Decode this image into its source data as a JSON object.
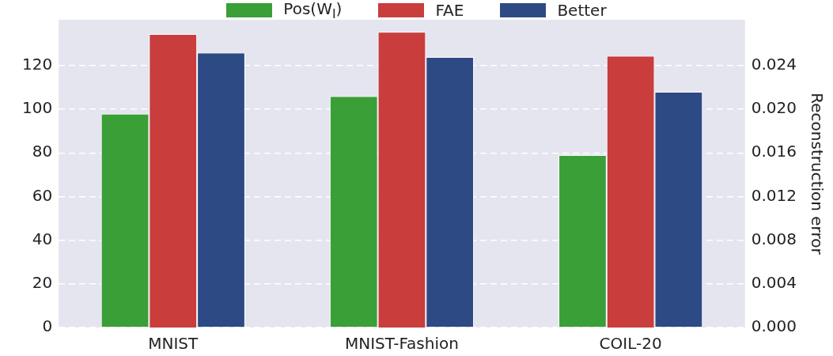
{
  "chart_data": {
    "type": "bar",
    "categories": [
      "MNIST",
      "MNIST-Fashion",
      "COIL-20"
    ],
    "series": [
      {
        "name": "Pos(W$_{l}$)",
        "color": "#3a9f36",
        "values": [
          98,
          106,
          79
        ]
      },
      {
        "name": "FAE",
        "color": "#c93d3d",
        "values": [
          0.0269,
          0.0271,
          0.0249
        ],
        "axis": "y2"
      },
      {
        "name": "Better",
        "color": "#2d4a85",
        "values": [
          126,
          124,
          108
        ]
      }
    ],
    "ylim": [
      0,
      141
    ],
    "yticks": [
      0,
      20,
      40,
      60,
      80,
      100,
      120
    ],
    "y2lim": [
      0,
      0.0282
    ],
    "y2ticks": [
      {
        "value": 0,
        "label": "0.000"
      },
      {
        "value": 0.004,
        "label": "0.004"
      },
      {
        "value": 0.008,
        "label": "0.008"
      },
      {
        "value": 0.012,
        "label": "0.012"
      },
      {
        "value": 0.016,
        "label": "0.016"
      },
      {
        "value": 0.02,
        "label": "0.020"
      },
      {
        "value": 0.024,
        "label": "0.024"
      }
    ],
    "y2label": "Reconstruction error",
    "grid": "y",
    "legend": "top"
  }
}
